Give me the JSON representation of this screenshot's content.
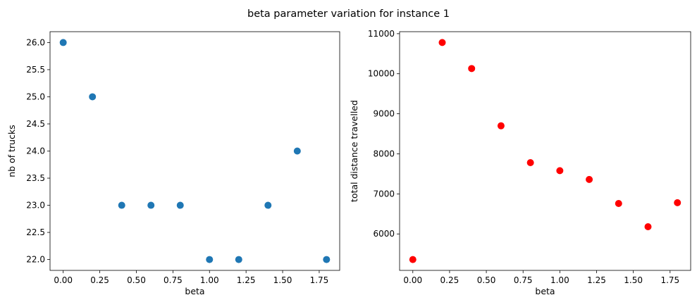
{
  "figure": {
    "title": "beta parameter variation for instance 1"
  },
  "chart_data": [
    {
      "type": "scatter",
      "xlabel": "beta",
      "ylabel": "nb of trucks",
      "x": [
        0.0,
        0.2,
        0.4,
        0.6,
        0.8,
        1.0,
        1.2,
        1.4,
        1.6,
        1.8
      ],
      "y": [
        26.0,
        25.0,
        23.0,
        23.0,
        23.0,
        22.0,
        22.0,
        23.0,
        24.0,
        22.0
      ],
      "xlim": [
        -0.09,
        1.89
      ],
      "ylim": [
        21.8,
        26.2
      ],
      "xticks": [
        0.0,
        0.25,
        0.5,
        0.75,
        1.0,
        1.25,
        1.5,
        1.75
      ],
      "xtick_labels": [
        "0.00",
        "0.25",
        "0.50",
        "0.75",
        "1.00",
        "1.25",
        "1.50",
        "1.75"
      ],
      "yticks": [
        22.0,
        22.5,
        23.0,
        23.5,
        24.0,
        24.5,
        25.0,
        25.5,
        26.0
      ],
      "ytick_labels": [
        "22.0",
        "22.5",
        "23.0",
        "23.5",
        "24.0",
        "24.5",
        "25.0",
        "25.5",
        "26.0"
      ],
      "color": "#1f77b4",
      "grid": false
    },
    {
      "type": "scatter",
      "xlabel": "beta",
      "ylabel": "total distance travelled",
      "x": [
        0.0,
        0.2,
        0.4,
        0.6,
        0.8,
        1.0,
        1.2,
        1.4,
        1.6,
        1.8
      ],
      "y": [
        5360,
        10780,
        10130,
        8700,
        7780,
        7580,
        7360,
        6760,
        6180,
        6780
      ],
      "xlim": [
        -0.09,
        1.89
      ],
      "ylim": [
        5090,
        11050
      ],
      "xticks": [
        0.0,
        0.25,
        0.5,
        0.75,
        1.0,
        1.25,
        1.5,
        1.75
      ],
      "xtick_labels": [
        "0.00",
        "0.25",
        "0.50",
        "0.75",
        "1.00",
        "1.25",
        "1.50",
        "1.75"
      ],
      "yticks": [
        6000,
        7000,
        8000,
        9000,
        10000,
        11000
      ],
      "ytick_labels": [
        "6000",
        "7000",
        "8000",
        "9000",
        "10000",
        "11000"
      ],
      "color": "#ff0000",
      "grid": false
    }
  ]
}
